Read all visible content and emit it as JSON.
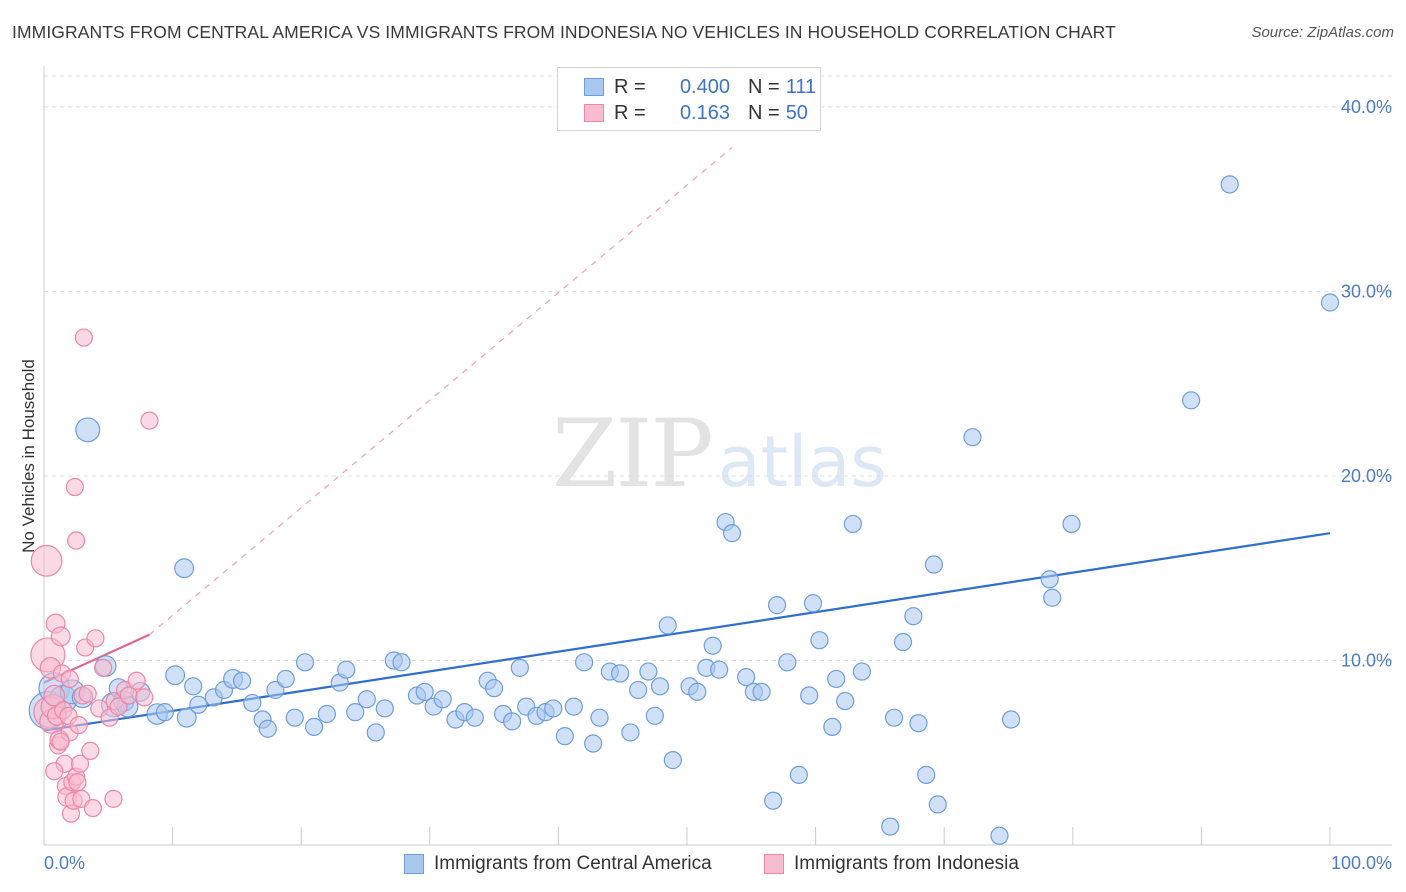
{
  "title": "IMMIGRANTS FROM CENTRAL AMERICA VS IMMIGRANTS FROM INDONESIA NO VEHICLES IN HOUSEHOLD CORRELATION CHART",
  "source": "Source: ZipAtlas.com",
  "watermark": {
    "zip": "ZIP",
    "atlas": "atlas"
  },
  "legend": {
    "r_label": "R =",
    "n_label": "N =",
    "rows": [
      {
        "r": "0.400",
        "n": "111"
      },
      {
        "r": "0.163",
        "n": "50"
      }
    ]
  },
  "colors": {
    "blue_fill": "#a9c8f0",
    "blue_stroke": "#6f9ed8",
    "blue_line": "#2f6fcb",
    "pink_fill": "#f7bcd0",
    "pink_stroke": "#ec86a6",
    "pink_line": "#e06890",
    "grid": "#dddddd",
    "tick_text": "#4a7cc9"
  },
  "chart_data": {
    "type": "scatter",
    "title": "IMMIGRANTS FROM CENTRAL AMERICA VS IMMIGRANTS FROM INDONESIA NO VEHICLES IN HOUSEHOLD CORRELATION CHART",
    "xlabel": "",
    "ylabel": "No Vehicles in Household",
    "xlim": [
      0,
      100
    ],
    "ylim": [
      0,
      42
    ],
    "x_tick_labels": [
      "0.0%",
      "100.0%"
    ],
    "y_ticks": [
      10,
      20,
      30,
      40
    ],
    "y_tick_labels": [
      "10.0%",
      "20.0%",
      "30.0%",
      "40.0%"
    ],
    "grid": true,
    "legend_position": "top-center",
    "series": [
      {
        "name": "Immigrants from Central America",
        "r": 0.4,
        "n": 111,
        "trend": {
          "x": [
            0,
            100
          ],
          "y": [
            6.2,
            16.9
          ],
          "style": "solid"
        },
        "points": [
          [
            0.3,
            7.3,
            22
          ],
          [
            0.8,
            8.5,
            18
          ],
          [
            1.5,
            7.9,
            16
          ],
          [
            2.2,
            8.3,
            14
          ],
          [
            3.0,
            8.0,
            12
          ],
          [
            3.4,
            22.5,
            14
          ],
          [
            4.8,
            9.7,
            12
          ],
          [
            5.4,
            7.6,
            14
          ],
          [
            5.8,
            8.5,
            11
          ],
          [
            6.2,
            7.8,
            12
          ],
          [
            6.5,
            7.5,
            12
          ],
          [
            7.5,
            8.3,
            11
          ],
          [
            8.8,
            7.1,
            12
          ],
          [
            9.4,
            7.2,
            10
          ],
          [
            10.2,
            9.2,
            11
          ],
          [
            10.9,
            15.0,
            11
          ],
          [
            11.1,
            6.9,
            11
          ],
          [
            11.6,
            8.6,
            10
          ],
          [
            12.0,
            7.6,
            10
          ],
          [
            13.2,
            8.0,
            10
          ],
          [
            14.0,
            8.4,
            10
          ],
          [
            14.7,
            9.0,
            11
          ],
          [
            15.4,
            8.9,
            10
          ],
          [
            16.2,
            7.7,
            10
          ],
          [
            17.0,
            6.8,
            10
          ],
          [
            17.4,
            6.3,
            10
          ],
          [
            18.0,
            8.4,
            10
          ],
          [
            18.8,
            9.0,
            10
          ],
          [
            19.5,
            6.9,
            10
          ],
          [
            20.3,
            9.9,
            10
          ],
          [
            21.0,
            6.4,
            10
          ],
          [
            22.0,
            7.1,
            10
          ],
          [
            23.0,
            8.8,
            10
          ],
          [
            23.5,
            9.5,
            10
          ],
          [
            24.2,
            7.2,
            10
          ],
          [
            25.1,
            7.9,
            10
          ],
          [
            25.8,
            6.1,
            10
          ],
          [
            26.5,
            7.4,
            10
          ],
          [
            27.2,
            10.0,
            10
          ],
          [
            27.8,
            9.9,
            10
          ],
          [
            29.0,
            8.1,
            10
          ],
          [
            29.6,
            8.3,
            10
          ],
          [
            30.3,
            7.5,
            10
          ],
          [
            31.0,
            7.9,
            10
          ],
          [
            32.0,
            6.8,
            10
          ],
          [
            32.7,
            7.2,
            10
          ],
          [
            33.5,
            6.9,
            10
          ],
          [
            34.5,
            8.9,
            10
          ],
          [
            35.0,
            8.5,
            10
          ],
          [
            35.7,
            7.1,
            10
          ],
          [
            36.4,
            6.7,
            10
          ],
          [
            37.0,
            9.6,
            10
          ],
          [
            37.5,
            7.5,
            10
          ],
          [
            38.3,
            7.0,
            10
          ],
          [
            39.0,
            7.2,
            10
          ],
          [
            39.6,
            7.4,
            10
          ],
          [
            40.5,
            5.9,
            10
          ],
          [
            41.2,
            7.5,
            10
          ],
          [
            42.0,
            9.9,
            10
          ],
          [
            42.7,
            5.5,
            10
          ],
          [
            43.2,
            6.9,
            10
          ],
          [
            44.0,
            9.4,
            10
          ],
          [
            44.8,
            9.3,
            10
          ],
          [
            45.6,
            6.1,
            10
          ],
          [
            46.2,
            8.4,
            10
          ],
          [
            47.0,
            9.4,
            10
          ],
          [
            47.5,
            7.0,
            10
          ],
          [
            47.9,
            8.6,
            10
          ],
          [
            48.5,
            11.9,
            10
          ],
          [
            48.9,
            4.6,
            10
          ],
          [
            50.2,
            8.6,
            10
          ],
          [
            50.8,
            8.3,
            10
          ],
          [
            51.5,
            9.6,
            10
          ],
          [
            52.0,
            10.8,
            10
          ],
          [
            52.5,
            9.5,
            10
          ],
          [
            53.0,
            17.5,
            10
          ],
          [
            53.5,
            16.9,
            10
          ],
          [
            54.6,
            9.1,
            10
          ],
          [
            55.2,
            8.3,
            10
          ],
          [
            55.8,
            8.3,
            10
          ],
          [
            56.7,
            2.4,
            10
          ],
          [
            57.0,
            13.0,
            10
          ],
          [
            57.8,
            9.9,
            10
          ],
          [
            58.7,
            3.8,
            10
          ],
          [
            59.5,
            8.1,
            10
          ],
          [
            59.8,
            13.1,
            10
          ],
          [
            60.3,
            11.1,
            10
          ],
          [
            61.3,
            6.4,
            10
          ],
          [
            61.6,
            9.0,
            10
          ],
          [
            62.3,
            7.8,
            10
          ],
          [
            62.9,
            17.4,
            10
          ],
          [
            63.6,
            9.4,
            10
          ],
          [
            65.8,
            1.0,
            10
          ],
          [
            66.1,
            6.9,
            10
          ],
          [
            66.8,
            11.0,
            10
          ],
          [
            67.6,
            12.4,
            10
          ],
          [
            68.0,
            6.6,
            10
          ],
          [
            68.6,
            3.8,
            10
          ],
          [
            69.2,
            15.2,
            10
          ],
          [
            69.5,
            2.2,
            10
          ],
          [
            72.2,
            22.1,
            10
          ],
          [
            74.3,
            0.5,
            10
          ],
          [
            75.2,
            6.8,
            10
          ],
          [
            78.2,
            14.4,
            10
          ],
          [
            78.4,
            13.4,
            10
          ],
          [
            79.9,
            17.4,
            10
          ],
          [
            89.2,
            24.1,
            10
          ],
          [
            92.2,
            35.8,
            10
          ],
          [
            100.0,
            29.4,
            10
          ]
        ]
      },
      {
        "name": "Immigrants from Indonesia",
        "r": 0.163,
        "n": 50,
        "trend": {
          "x": [
            0,
            8.2
          ],
          "y": [
            8.8,
            11.4
          ],
          "style": "solid",
          "extension": {
            "x": [
              8.2,
              53.5
            ],
            "y": [
              11.4,
              37.8
            ],
            "style": "dashed"
          }
        },
        "points": [
          [
            0.2,
            15.4,
            18
          ],
          [
            0.3,
            10.3,
            20
          ],
          [
            0.4,
            7.2,
            18
          ],
          [
            0.5,
            9.6,
            12
          ],
          [
            0.6,
            6.7,
            14
          ],
          [
            0.7,
            7.5,
            14
          ],
          [
            0.8,
            8.1,
            12
          ],
          [
            0.9,
            12.0,
            11
          ],
          [
            1.0,
            7.0,
            11
          ],
          [
            1.1,
            5.4,
            10
          ],
          [
            1.2,
            5.7,
            11
          ],
          [
            1.3,
            11.3,
            11
          ],
          [
            1.4,
            9.3,
            10
          ],
          [
            1.5,
            7.3,
            10
          ],
          [
            1.6,
            4.4,
            10
          ],
          [
            1.7,
            3.2,
            10
          ],
          [
            1.8,
            2.6,
            11
          ],
          [
            1.9,
            7.0,
            10
          ],
          [
            2.0,
            6.1,
            10
          ],
          [
            2.1,
            1.7,
            10
          ],
          [
            2.2,
            3.4,
            10
          ],
          [
            2.3,
            2.4,
            10
          ],
          [
            2.4,
            19.4,
            10
          ],
          [
            2.5,
            16.5,
            10
          ],
          [
            2.5,
            3.7,
            10
          ],
          [
            2.6,
            3.4,
            10
          ],
          [
            2.7,
            6.5,
            10
          ],
          [
            2.8,
            4.4,
            10
          ],
          [
            2.9,
            2.5,
            10
          ],
          [
            3.0,
            8.1,
            10
          ],
          [
            3.1,
            27.5,
            10
          ],
          [
            3.2,
            10.7,
            10
          ],
          [
            3.4,
            8.2,
            10
          ],
          [
            3.6,
            5.1,
            10
          ],
          [
            3.8,
            2.0,
            10
          ],
          [
            4.0,
            11.2,
            10
          ],
          [
            4.3,
            7.4,
            10
          ],
          [
            4.6,
            9.6,
            10
          ],
          [
            5.1,
            6.9,
            10
          ],
          [
            5.4,
            2.5,
            10
          ],
          [
            5.5,
            7.8,
            10
          ],
          [
            5.8,
            7.5,
            10
          ],
          [
            6.3,
            8.4,
            10
          ],
          [
            6.6,
            8.1,
            10
          ],
          [
            7.2,
            8.9,
            10
          ],
          [
            7.8,
            8.0,
            10
          ],
          [
            8.2,
            23.0,
            10
          ],
          [
            1.3,
            5.6,
            10
          ],
          [
            0.8,
            4.0,
            10
          ],
          [
            2.0,
            9.0,
            10
          ]
        ]
      }
    ]
  },
  "bottom_legend": [
    "Immigrants from Central America",
    "Immigrants from Indonesia"
  ]
}
